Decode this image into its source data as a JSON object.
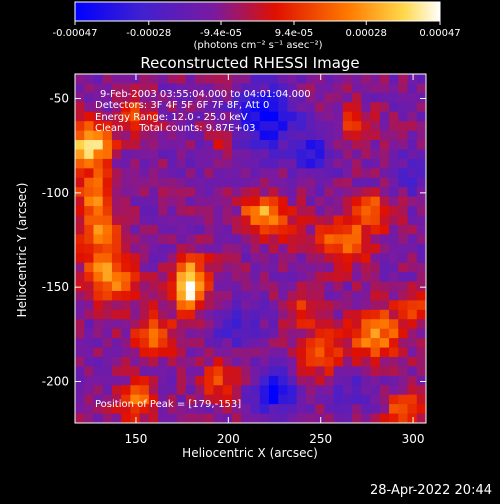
{
  "chart_data": {
    "type": "heatmap",
    "title": "Reconstructed RHESSI Image",
    "xlabel": "Heliocentric X (arcsec)",
    "ylabel": "Heliocentric Y (arcsec)",
    "x_ticks": [
      "150",
      "200",
      "250",
      "300"
    ],
    "y_ticks": [
      "-50",
      "-100",
      "-150",
      "-200"
    ],
    "x_tick_values": [
      150,
      200,
      250,
      300
    ],
    "y_tick_values": [
      -50,
      -100,
      -150,
      -200
    ],
    "xlim": [
      117,
      307
    ],
    "ylim": [
      -222,
      -37
    ],
    "colormap_colors": [
      "#0000ff",
      "#5b3cc8",
      "#7a1aa0",
      "#e01000",
      "#ff7a00",
      "#ffd84a",
      "#ffffff"
    ],
    "colorbar": {
      "ticks": [
        "-0.00047",
        "-0.00028",
        "-9.4e-05",
        "9.4e-05",
        "0.00028",
        "0.00047"
      ],
      "tick_values": [
        -0.00047,
        -0.00028,
        -9.4e-05,
        9.4e-05,
        0.00028,
        0.00047
      ],
      "range": [
        -0.00047,
        0.00047
      ],
      "unit_label": "(photons cm⁻² s⁻¹ asec⁻²)"
    },
    "info_lines": [
      "9-Feb-2003 03:55:04.000 to 04:01:04.000",
      "Detectors: 3F 4F 5F 6F 7F 8F, Att 0",
      "Energy Range: 12.0 - 25.0 keV",
      "Clean     Total counts: 9.87E+03"
    ],
    "peak_label": "Position of Peak = [179,-153]",
    "peak": {
      "x": 179,
      "y": -153
    }
  },
  "footer": {
    "timestamp": "28-Apr-2022 20:44"
  }
}
